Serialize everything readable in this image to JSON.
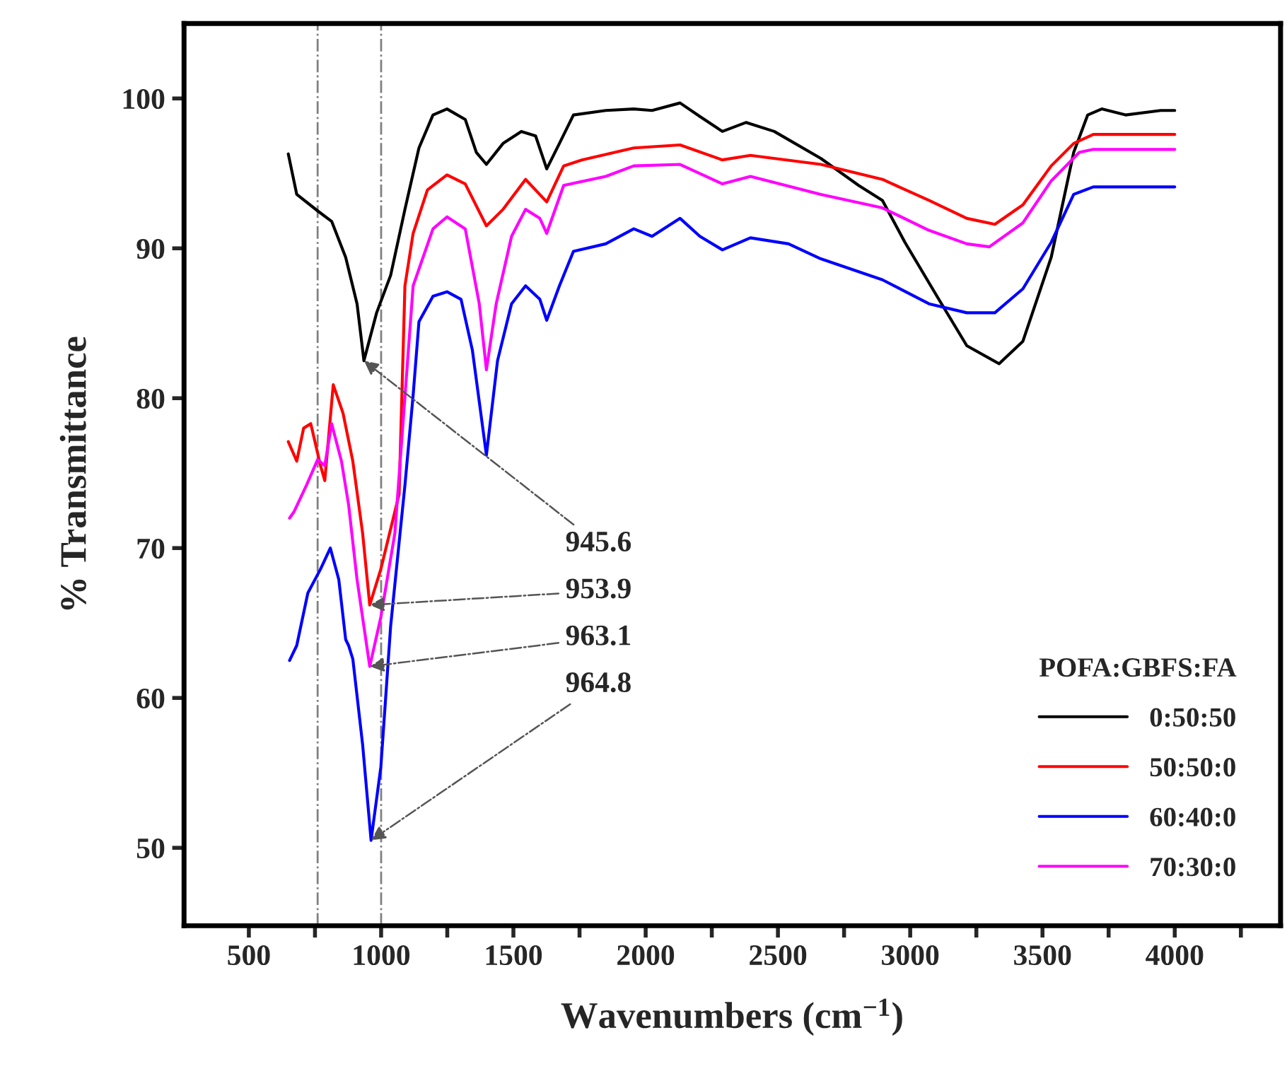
{
  "chart_data": {
    "type": "line",
    "xlabel": "Wavenumbers (cm$^{−1}$)",
    "ylabel": "% Transmittance",
    "legend_title": "POFA:GBFS:FA",
    "legend": "bottom right",
    "grid": false,
    "line_style": "solid",
    "xlim": [
      255,
      4400
    ],
    "ylim": [
      44.8,
      105
    ],
    "xticks": [
      500,
      {
        "value": 750,
        "label": null
      },
      1000,
      {
        "value": 1250,
        "label": null
      },
      1500,
      {
        "value": 1750,
        "label": null
      },
      2000,
      {
        "value": 2250,
        "label": null
      },
      2500,
      {
        "value": 2750,
        "label": null
      },
      3000,
      {
        "value": 3250,
        "label": null
      },
      3500,
      {
        "value": 3750,
        "label": null
      },
      4000,
      {
        "value": 4250,
        "label": null
      }
    ],
    "yticks": [
      50,
      60,
      70,
      80,
      90,
      100
    ],
    "ref_lines": [
      {
        "axis": "x",
        "value": 760,
        "color": "#808080",
        "line_style": "dashdot"
      },
      {
        "axis": "x",
        "value": 1000,
        "color": "#808080",
        "line_style": "dashdot"
      }
    ],
    "annotations": [
      {
        "text": "945.6",
        "x": 935,
        "y": 82.5
      },
      {
        "text": "953.9",
        "x": 957,
        "y": 66.2
      },
      {
        "text": "963.1",
        "x": 957,
        "y": 62.1
      },
      {
        "text": "964.8",
        "x": 962,
        "y": 50.5
      }
    ],
    "series": [
      {
        "name": "0:50:50",
        "color": "#000000",
        "x": [
          649,
          681,
          760,
          813,
          866,
          909,
          935,
          983,
          1036,
          1090,
          1143,
          1196,
          1249,
          1318,
          1360,
          1398,
          1461,
          1530,
          1584,
          1626,
          1674,
          1727,
          1849,
          1955,
          2024,
          2130,
          2205,
          2290,
          2380,
          2486,
          2662,
          2805,
          2895,
          2980,
          3108,
          3214,
          3336,
          3426,
          3533,
          3618,
          3671,
          3724,
          3814,
          3947,
          4000
        ],
        "values": [
          96.3,
          93.6,
          92.5,
          91.8,
          89.4,
          86.3,
          82.5,
          85.7,
          88.2,
          92.6,
          96.7,
          98.9,
          99.3,
          98.6,
          96.4,
          95.6,
          97.0,
          97.8,
          97.5,
          95.3,
          97.0,
          98.9,
          99.2,
          99.3,
          99.2,
          99.7,
          98.8,
          97.8,
          98.4,
          97.8,
          96.0,
          94.2,
          93.2,
          90.4,
          86.6,
          83.5,
          82.3,
          83.8,
          89.4,
          96.4,
          98.9,
          99.3,
          98.9,
          99.2,
          99.2
        ]
      },
      {
        "name": "50:50:0",
        "color": "#ff0000",
        "x": [
          649,
          681,
          707,
          734,
          771,
          787,
          819,
          856,
          893,
          930,
          957,
          999,
          1068,
          1090,
          1121,
          1175,
          1249,
          1318,
          1398,
          1461,
          1546,
          1626,
          1690,
          1759,
          1955,
          2130,
          2290,
          2396,
          2662,
          2895,
          3071,
          3214,
          3320,
          3426,
          3533,
          3618,
          3692,
          3947,
          4000
        ],
        "values": [
          77.1,
          75.8,
          78.0,
          78.3,
          75.5,
          74.5,
          80.9,
          79.0,
          75.8,
          71.0,
          66.2,
          68.6,
          73.6,
          87.5,
          91.0,
          93.9,
          94.9,
          94.3,
          91.5,
          92.6,
          94.6,
          93.1,
          95.5,
          95.9,
          96.7,
          96.9,
          95.9,
          96.2,
          95.6,
          94.6,
          93.2,
          92.0,
          91.6,
          92.9,
          95.5,
          97.0,
          97.6,
          97.6,
          97.6
        ]
      },
      {
        "name": "60:40:0",
        "color": "#0000ff",
        "x": [
          654,
          681,
          723,
          771,
          808,
          840,
          866,
          877,
          893,
          930,
          962,
          999,
          1036,
          1090,
          1121,
          1143,
          1196,
          1249,
          1302,
          1345,
          1398,
          1440,
          1493,
          1546,
          1600,
          1626,
          1674,
          1727,
          1849,
          1955,
          2024,
          2130,
          2205,
          2290,
          2396,
          2540,
          2662,
          2895,
          3071,
          3214,
          3320,
          3426,
          3533,
          3618,
          3692,
          3947,
          4000
        ],
        "values": [
          62.5,
          63.5,
          67.0,
          68.6,
          70.0,
          67.9,
          63.9,
          63.5,
          62.6,
          56.9,
          50.5,
          55.4,
          64.8,
          74.2,
          80.2,
          85.1,
          86.8,
          87.1,
          86.6,
          83.2,
          76.2,
          82.5,
          86.3,
          87.5,
          86.6,
          85.2,
          87.5,
          89.8,
          90.3,
          91.3,
          90.8,
          92.0,
          90.8,
          89.9,
          90.7,
          90.3,
          89.3,
          87.9,
          86.3,
          85.7,
          85.7,
          87.3,
          90.4,
          93.6,
          94.1,
          94.1,
          94.1
        ]
      },
      {
        "name": "70:30:0",
        "color": "#ff00ff",
        "x": [
          654,
          670,
          718,
          760,
          787,
          813,
          850,
          877,
          909,
          957,
          999,
          1052,
          1121,
          1196,
          1249,
          1318,
          1371,
          1398,
          1435,
          1493,
          1546,
          1600,
          1626,
          1690,
          1849,
          1955,
          2130,
          2290,
          2396,
          2662,
          2895,
          3071,
          3214,
          3299,
          3426,
          3533,
          3639,
          3692,
          3947,
          4000
        ],
        "values": [
          72.0,
          72.4,
          74.2,
          75.9,
          75.5,
          78.3,
          75.8,
          72.9,
          67.9,
          62.1,
          65.4,
          71.0,
          87.5,
          91.3,
          92.1,
          91.3,
          86.3,
          81.9,
          86.3,
          90.8,
          92.6,
          92.0,
          91.0,
          94.2,
          94.8,
          95.5,
          95.6,
          94.3,
          94.8,
          93.6,
          92.7,
          91.2,
          90.3,
          90.1,
          91.7,
          94.5,
          96.4,
          96.6,
          96.6,
          96.6
        ]
      }
    ]
  }
}
